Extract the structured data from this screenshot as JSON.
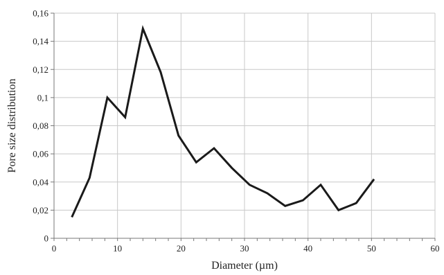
{
  "chart_data": {
    "type": "line",
    "title": "",
    "xlabel": "Diameter (µm)",
    "ylabel": "Pore size distribution",
    "xlim": [
      0,
      60
    ],
    "ylim": [
      0,
      0.16
    ],
    "xticks": [
      0,
      10,
      20,
      30,
      40,
      50,
      60
    ],
    "yticks": [
      0,
      0.02,
      0.04,
      0.06,
      0.08,
      0.1,
      0.12,
      0.14,
      0.16
    ],
    "xtick_labels": [
      "0",
      "10",
      "20",
      "30",
      "40",
      "50",
      "60"
    ],
    "ytick_labels": [
      "0",
      "0,02",
      "0,04",
      "0,06",
      "0,08",
      "0,1",
      "0,12",
      "0,14",
      "0,16"
    ],
    "grid": true,
    "legend": "none",
    "series": [
      {
        "color": "#1a1a1a",
        "x": [
          2.8,
          5.6,
          8.4,
          11.2,
          14.0,
          16.8,
          19.6,
          22.4,
          25.2,
          28.0,
          30.8,
          33.6,
          36.4,
          39.2,
          42.0,
          44.8,
          47.6,
          50.4
        ],
        "y": [
          0.015,
          0.043,
          0.1,
          0.086,
          0.149,
          0.118,
          0.073,
          0.054,
          0.064,
          0.05,
          0.038,
          0.032,
          0.023,
          0.027,
          0.038,
          0.02,
          0.025,
          0.042
        ]
      }
    ]
  }
}
